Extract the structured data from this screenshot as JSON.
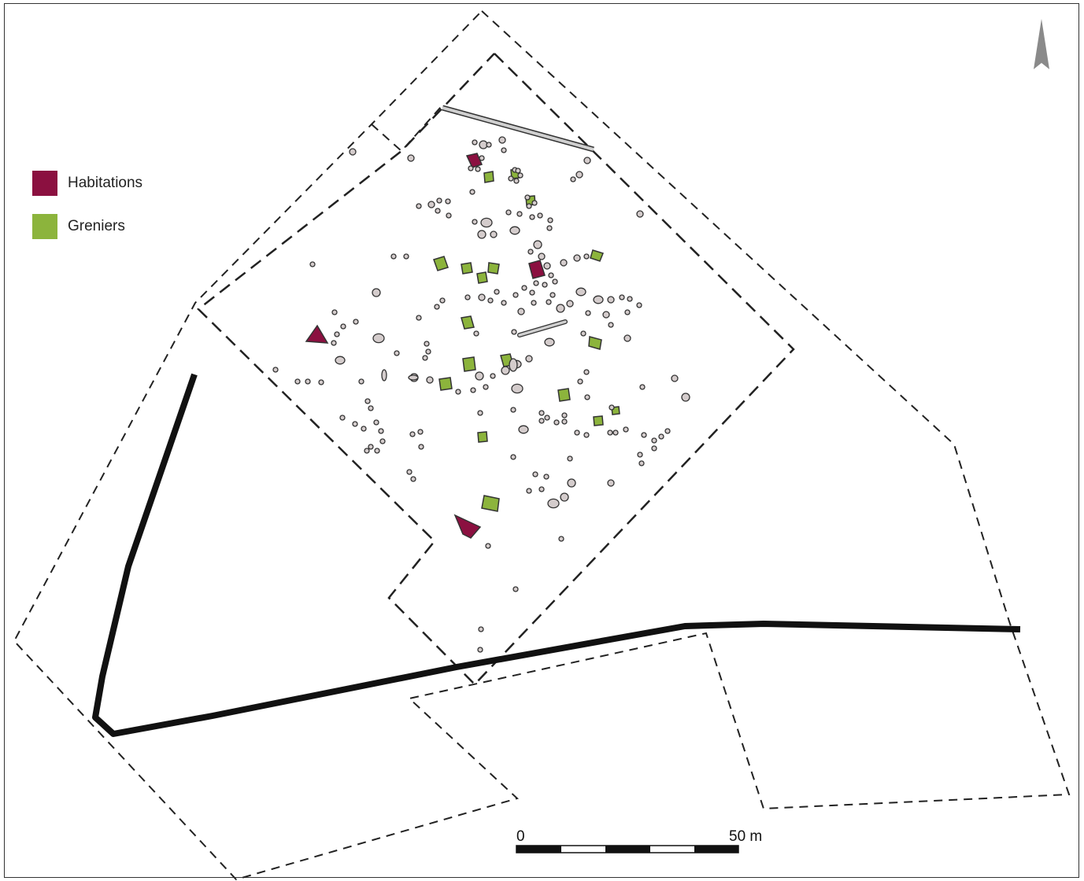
{
  "legend": {
    "habitations": {
      "label": "Habitations",
      "color": "#8b1040"
    },
    "greniers": {
      "label": "Greniers",
      "color": "#8cb43c"
    }
  },
  "scale_bar": {
    "start_label": "0",
    "end_label": "50 m"
  },
  "north_arrow": {
    "icon": "north-arrow-icon",
    "color": "#8a8a8a"
  },
  "colors": {
    "pit_fill": "#d4cccc",
    "pit_stroke": "#333333",
    "road": "#111111",
    "boundary": "#222222"
  }
}
